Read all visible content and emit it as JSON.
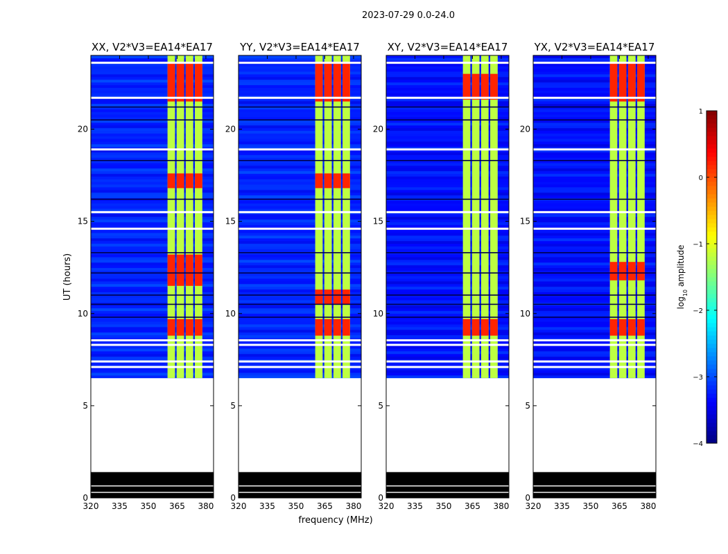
{
  "suptitle": "2023-07-29 0.0-24.0",
  "xlabel": "frequency (MHz)",
  "ylabel": "UT (hours)",
  "colorbar": {
    "label_prefix": "log",
    "label_sub": "10",
    "label_suffix": " amplitude",
    "range": [
      -4,
      1
    ],
    "ticks": [
      1,
      0,
      -1,
      -2,
      -3,
      -4
    ],
    "tick_labels": [
      "1",
      "0",
      "−1",
      "−2",
      "−3",
      "−4"
    ],
    "colormap": "jet"
  },
  "chart_data": [
    {
      "type": "heatmap",
      "title": "XX, V2*V3=EA14*EA17",
      "xlim": [
        320,
        384
      ],
      "ylim": [
        0,
        24
      ],
      "xticks": [
        320,
        335,
        350,
        365,
        380
      ],
      "xtick_labels": [
        "320",
        "335",
        "350",
        "365",
        "380"
      ],
      "yticks": [
        0,
        5,
        10,
        15,
        20
      ],
      "ytick_labels": [
        "0",
        "5",
        "10",
        "15",
        "20"
      ],
      "data_start_hour": 6.5,
      "flagged_hours": [
        0,
        1.4
      ],
      "background_log_amplitude": -3.2,
      "rfi_band_mhz": [
        360,
        379
      ],
      "rfi_log_amplitude": -1.2,
      "bright_log_amplitude": 0.2,
      "bright_intervals": [
        [
          8.8,
          9.7
        ],
        [
          11.5,
          13.2
        ],
        [
          16.8,
          17.6
        ],
        [
          21.5,
          23.6
        ]
      ]
    },
    {
      "type": "heatmap",
      "title": "YY, V2*V3=EA14*EA17",
      "xlim": [
        320,
        384
      ],
      "ylim": [
        0,
        24
      ],
      "xticks": [
        320,
        335,
        350,
        365,
        380
      ],
      "xtick_labels": [
        "320",
        "335",
        "350",
        "365",
        "380"
      ],
      "yticks": [
        0,
        5,
        10,
        15,
        20
      ],
      "ytick_labels": [
        "0",
        "5",
        "10",
        "15",
        "20"
      ],
      "data_start_hour": 6.5,
      "flagged_hours": [
        0,
        1.4
      ],
      "background_log_amplitude": -3.2,
      "rfi_band_mhz": [
        360,
        379
      ],
      "rfi_log_amplitude": -1.2,
      "bright_log_amplitude": 0.2,
      "bright_intervals": [
        [
          8.8,
          9.7
        ],
        [
          10.5,
          11.3
        ],
        [
          16.8,
          17.6
        ],
        [
          21.5,
          23.6
        ]
      ]
    },
    {
      "type": "heatmap",
      "title": "XY, V2*V3=EA14*EA17",
      "xlim": [
        320,
        384
      ],
      "ylim": [
        0,
        24
      ],
      "xticks": [
        320,
        335,
        350,
        365,
        380
      ],
      "xtick_labels": [
        "320",
        "335",
        "350",
        "365",
        "380"
      ],
      "yticks": [
        0,
        5,
        10,
        15,
        20
      ],
      "ytick_labels": [
        "0",
        "5",
        "10",
        "15",
        "20"
      ],
      "data_start_hour": 6.5,
      "flagged_hours": [
        0,
        1.4
      ],
      "background_log_amplitude": -3.3,
      "rfi_band_mhz": [
        360,
        379
      ],
      "rfi_log_amplitude": -1.2,
      "bright_log_amplitude": 0.2,
      "bright_intervals": [
        [
          8.8,
          9.7
        ],
        [
          21.6,
          23.0
        ]
      ]
    },
    {
      "type": "heatmap",
      "title": "YX, V2*V3=EA14*EA17",
      "xlim": [
        320,
        384
      ],
      "ylim": [
        0,
        24
      ],
      "xticks": [
        320,
        335,
        350,
        365,
        380
      ],
      "xtick_labels": [
        "320",
        "335",
        "350",
        "365",
        "380"
      ],
      "yticks": [
        0,
        5,
        10,
        15,
        20
      ],
      "ytick_labels": [
        "0",
        "5",
        "10",
        "15",
        "20"
      ],
      "data_start_hour": 6.5,
      "flagged_hours": [
        0,
        1.4
      ],
      "background_log_amplitude": -3.3,
      "rfi_band_mhz": [
        360,
        379
      ],
      "rfi_log_amplitude": -1.2,
      "bright_log_amplitude": 0.2,
      "bright_intervals": [
        [
          8.8,
          9.7
        ],
        [
          11.8,
          12.8
        ],
        [
          21.5,
          23.6
        ]
      ]
    }
  ]
}
